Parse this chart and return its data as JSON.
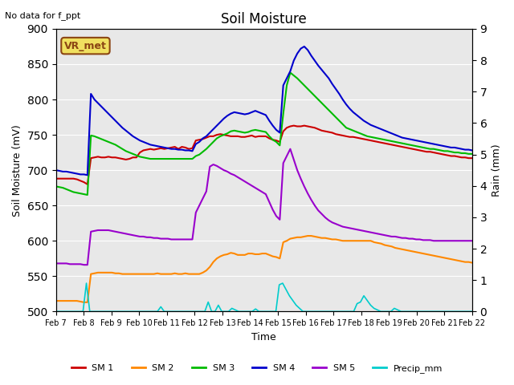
{
  "title": "Soil Moisture",
  "subtitle": "No data for f_ppt",
  "ylabel_left": "Soil Moisture (mV)",
  "ylabel_right": "Rain (mm)",
  "xlabel": "Time",
  "annotation": "VR_met",
  "ylim_left": [
    500,
    900
  ],
  "ylim_right": [
    0.0,
    9.0
  ],
  "yticks_left": [
    500,
    550,
    600,
    650,
    700,
    750,
    800,
    850,
    900
  ],
  "yticks_right": [
    0.0,
    1.0,
    2.0,
    3.0,
    4.0,
    5.0,
    6.0,
    7.0,
    8.0,
    9.0
  ],
  "colors": {
    "SM1": "#cc0000",
    "SM2": "#ff8800",
    "SM3": "#00bb00",
    "SM4": "#0000cc",
    "SM5": "#9900cc",
    "Precip": "#00cccc",
    "bg": "#e8e8e8"
  },
  "legend_labels": [
    "SM 1",
    "SM 2",
    "SM 3",
    "SM 4",
    "SM 5",
    "Precip_mm"
  ],
  "xtick_labels": [
    "Feb 7",
    "Feb 8",
    "Feb 9",
    "Feb 10",
    "Feb 11",
    "Feb 12",
    "Feb 13",
    "Feb 14",
    "Feb 15",
    "Feb 16",
    "Feb 17",
    "Feb 18",
    "Feb 19",
    "Feb 20",
    "Feb 21",
    "Feb 22"
  ],
  "n_days": 15,
  "sm1": [
    688,
    688,
    688,
    688,
    688,
    688,
    687,
    685,
    683,
    680,
    717,
    718,
    719,
    718,
    718,
    719,
    718,
    718,
    717,
    716,
    715,
    716,
    718,
    718,
    725,
    728,
    729,
    730,
    729,
    730,
    731,
    730,
    731,
    732,
    733,
    730,
    733,
    732,
    730,
    731,
    742,
    743,
    744,
    746,
    748,
    748,
    750,
    751,
    750,
    749,
    748,
    748,
    748,
    747,
    747,
    748,
    749,
    747,
    748,
    748,
    748,
    745,
    743,
    742,
    740,
    755,
    760,
    762,
    763,
    762,
    762,
    763,
    762,
    761,
    760,
    758,
    756,
    755,
    754,
    753,
    751,
    750,
    749,
    748,
    747,
    747,
    746,
    745,
    744,
    743,
    742,
    741,
    740,
    739,
    738,
    737,
    736,
    735,
    734,
    733,
    732,
    731,
    730,
    729,
    728,
    727,
    726,
    726,
    725,
    724,
    723,
    722,
    721,
    720,
    720,
    719,
    718,
    718,
    717,
    717
  ],
  "sm2": [
    515,
    515,
    515,
    515,
    515,
    515,
    515,
    514,
    513,
    513,
    553,
    554,
    555,
    555,
    555,
    555,
    555,
    554,
    554,
    553,
    553,
    553,
    553,
    553,
    553,
    553,
    553,
    553,
    553,
    554,
    553,
    553,
    553,
    553,
    554,
    553,
    553,
    554,
    553,
    553,
    553,
    553,
    555,
    558,
    563,
    570,
    575,
    578,
    580,
    581,
    583,
    582,
    580,
    580,
    580,
    582,
    582,
    581,
    581,
    582,
    582,
    580,
    578,
    577,
    575,
    598,
    600,
    603,
    604,
    605,
    605,
    606,
    607,
    607,
    606,
    605,
    604,
    604,
    603,
    602,
    602,
    601,
    600,
    600,
    600,
    600,
    600,
    600,
    600,
    600,
    600,
    598,
    597,
    596,
    594,
    593,
    592,
    590,
    589,
    588,
    587,
    586,
    585,
    584,
    583,
    582,
    581,
    580,
    579,
    578,
    577,
    576,
    575,
    574,
    573,
    572,
    571,
    570,
    570,
    569
  ],
  "sm3": [
    677,
    676,
    675,
    673,
    671,
    669,
    668,
    667,
    666,
    665,
    749,
    748,
    746,
    744,
    742,
    740,
    738,
    736,
    733,
    730,
    727,
    725,
    723,
    721,
    719,
    718,
    717,
    716,
    716,
    716,
    716,
    716,
    716,
    716,
    716,
    716,
    716,
    716,
    716,
    716,
    720,
    722,
    726,
    730,
    735,
    740,
    745,
    748,
    750,
    752,
    755,
    756,
    755,
    754,
    753,
    754,
    756,
    757,
    756,
    755,
    754,
    748,
    743,
    740,
    735,
    780,
    820,
    838,
    834,
    830,
    825,
    820,
    815,
    810,
    805,
    800,
    795,
    790,
    785,
    780,
    775,
    770,
    765,
    760,
    758,
    756,
    754,
    752,
    750,
    748,
    747,
    746,
    745,
    744,
    743,
    742,
    741,
    740,
    739,
    738,
    737,
    736,
    735,
    734,
    733,
    732,
    731,
    730,
    730,
    729,
    728,
    727,
    727,
    726,
    725,
    725,
    724,
    724,
    723,
    723
  ],
  "sm4": [
    700,
    699,
    698,
    698,
    697,
    696,
    695,
    694,
    694,
    693,
    808,
    800,
    795,
    790,
    785,
    780,
    775,
    770,
    765,
    760,
    756,
    752,
    748,
    745,
    742,
    740,
    738,
    736,
    735,
    734,
    733,
    732,
    731,
    730,
    730,
    729,
    729,
    728,
    728,
    727,
    737,
    740,
    745,
    748,
    753,
    758,
    763,
    768,
    773,
    777,
    780,
    782,
    781,
    780,
    779,
    780,
    782,
    784,
    782,
    780,
    778,
    770,
    763,
    757,
    753,
    820,
    830,
    840,
    855,
    865,
    872,
    875,
    870,
    862,
    855,
    848,
    842,
    836,
    830,
    822,
    815,
    808,
    800,
    793,
    787,
    782,
    778,
    774,
    770,
    767,
    764,
    762,
    760,
    758,
    756,
    754,
    752,
    750,
    748,
    746,
    745,
    744,
    743,
    742,
    741,
    740,
    739,
    738,
    737,
    736,
    735,
    734,
    733,
    732,
    732,
    731,
    730,
    729,
    729,
    728
  ],
  "sm5": [
    568,
    568,
    568,
    568,
    567,
    567,
    567,
    567,
    566,
    566,
    613,
    614,
    615,
    615,
    615,
    615,
    614,
    613,
    612,
    611,
    610,
    609,
    608,
    607,
    606,
    606,
    605,
    605,
    604,
    604,
    603,
    603,
    603,
    602,
    602,
    602,
    602,
    602,
    602,
    602,
    640,
    650,
    660,
    670,
    705,
    708,
    706,
    703,
    700,
    698,
    695,
    693,
    690,
    687,
    684,
    681,
    678,
    675,
    672,
    669,
    666,
    655,
    644,
    635,
    630,
    710,
    720,
    730,
    715,
    700,
    688,
    677,
    667,
    658,
    650,
    643,
    638,
    633,
    629,
    626,
    624,
    622,
    620,
    619,
    618,
    617,
    616,
    615,
    614,
    613,
    612,
    611,
    610,
    609,
    608,
    607,
    606,
    606,
    605,
    604,
    604,
    603,
    603,
    602,
    602,
    601,
    601,
    601,
    600,
    600,
    600,
    600,
    600,
    600,
    600,
    600,
    600,
    600,
    600,
    600
  ],
  "precip": [
    0,
    0,
    0,
    0,
    0,
    0,
    0,
    0,
    0,
    0.9,
    0,
    0,
    0,
    0,
    0,
    0,
    0,
    0,
    0,
    0,
    0,
    0,
    0,
    0,
    0,
    0,
    0,
    0,
    0,
    0,
    0,
    0.15,
    0,
    0,
    0,
    0,
    0,
    0,
    0,
    0,
    0,
    0,
    0,
    0,
    0,
    0.3,
    0,
    0,
    0.2,
    0,
    0,
    0,
    0.1,
    0.05,
    0,
    0,
    0,
    0,
    0,
    0.08,
    0,
    0,
    0,
    0,
    0,
    0,
    0.85,
    0.9,
    0.7,
    0.5,
    0.35,
    0.2,
    0.1,
    0,
    0,
    0,
    0,
    0,
    0,
    0,
    0,
    0,
    0,
    0,
    0,
    0,
    0,
    0,
    0,
    0.25,
    0.3,
    0.5,
    0.35,
    0.2,
    0.1,
    0.05,
    0,
    0,
    0,
    0,
    0.1,
    0.05,
    0,
    0,
    0,
    0,
    0,
    0,
    0,
    0,
    0,
    0,
    0,
    0,
    0,
    0,
    0,
    0,
    0,
    0,
    0,
    0,
    0,
    0
  ]
}
